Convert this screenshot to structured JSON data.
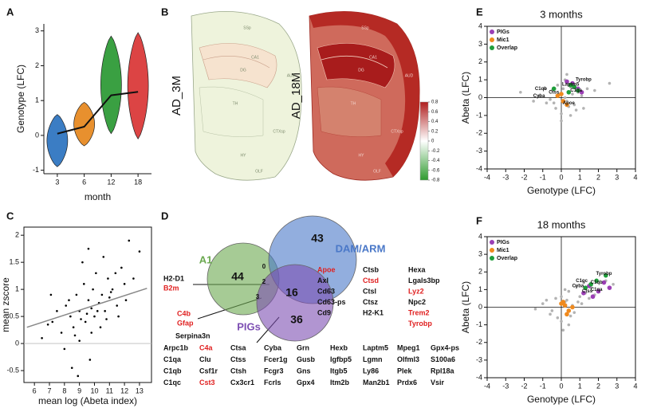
{
  "panels": [
    "A",
    "B",
    "C",
    "D",
    "E",
    "F"
  ],
  "chart_data": [
    {
      "type": "violin",
      "categories": [
        "3",
        "6",
        "12",
        "18"
      ],
      "x_label": "month",
      "y_label": "Genotype (LFC)",
      "values": [
        0.05,
        0.25,
        1.15,
        1.25
      ],
      "min": [
        -0.9,
        -0.3,
        0.05,
        -0.1
      ],
      "max": [
        0.6,
        0.95,
        2.85,
        2.95
      ],
      "colors": [
        "#3b7dc4",
        "#e8902e",
        "#3aa042",
        "#dc4444"
      ],
      "line_color": "#111111",
      "ylim": [
        -1.1,
        3.2
      ],
      "yticks": [
        -1,
        0,
        1,
        2,
        3
      ]
    },
    {
      "type": "scatter",
      "x_label": "mean log (Abeta index)",
      "y_label": "mean zscore",
      "color": "#000000",
      "x": [
        7.2,
        7.8,
        8.1,
        8.4,
        8.6,
        8.8,
        9.0,
        9.1,
        9.3,
        9.5,
        9.6,
        9.8,
        10.0,
        10.1,
        10.3,
        10.5,
        10.7,
        10.9,
        11.0,
        11.2,
        11.5,
        11.8,
        12.0,
        12.3,
        6.5,
        6.9,
        7.5,
        8.0,
        8.3,
        8.7,
        9.2,
        9.4,
        9.7,
        9.9,
        10.2,
        10.6,
        11.1,
        11.6,
        12.6,
        13.0,
        8.5,
        9.0,
        9.6,
        10.4,
        8.9,
        7.1,
        10.8,
        11.4,
        12.1,
        9.8
      ],
      "y": [
        0.4,
        0.2,
        0.7,
        0.5,
        0.3,
        0.9,
        0.6,
        0.45,
        1.1,
        0.55,
        0.8,
        0.65,
        0.5,
        1.3,
        0.75,
        0.9,
        0.6,
        1.2,
        0.85,
        1.0,
        0.7,
        1.4,
        1.1,
        1.9,
        0.1,
        0.35,
        0.6,
        -0.1,
        0.8,
        0.15,
        1.5,
        0.4,
        -0.3,
        1.0,
        0.6,
        1.6,
        0.95,
        0.5,
        1.2,
        1.7,
        -0.45,
        0.05,
        1.75,
        0.3,
        -0.6,
        0.9,
        0.45,
        1.3,
        0.8,
        0.2
      ],
      "trend_x": [
        5.5,
        13.5
      ],
      "trend_y": [
        0.3,
        1.02
      ],
      "trend_color": "#888888",
      "zero_y": true,
      "xlim": [
        5.3,
        13.8
      ],
      "xticks": [
        6,
        7,
        8,
        9,
        10,
        11,
        12,
        13
      ],
      "ylim": [
        -0.72,
        2.15
      ],
      "yticks": [
        -0.5,
        0,
        0.5,
        1,
        1.5,
        2
      ]
    },
    {
      "type": "scatter",
      "title": "3 months",
      "x_label": "Genotype (LFC)",
      "y_label": "Abeta (LFC)",
      "zero_x": true,
      "zero_y": true,
      "legend": "upper left",
      "background": {
        "color": "#b3b3b3",
        "x": [
          -1.2,
          -0.8,
          -0.5,
          -0.3,
          -0.1,
          0,
          0.1,
          0.2,
          0.3,
          0.5,
          0.7,
          0.9,
          1.1,
          1.4,
          -0.6,
          -0.2,
          0.4,
          0.6,
          0.8,
          -1.5,
          1.8,
          -0.9,
          0.2,
          0,
          0.5,
          -0.4,
          1.2,
          -2.2,
          2.6,
          0.3
        ],
        "y": [
          0.1,
          -0.3,
          0.4,
          -0.6,
          0.2,
          -0.9,
          0.5,
          0.0,
          -0.2,
          0.6,
          -0.4,
          0.3,
          0.1,
          0.5,
          -0.1,
          0.7,
          -0.5,
          0.2,
          -0.7,
          -0.2,
          0.4,
          0.5,
          1.0,
          -1.3,
          -1.0,
          -0.3,
          -0.6,
          0.3,
          0.8,
          1.3
        ]
      },
      "series": [
        {
          "name": "PIGs",
          "color": "#9b3fb5",
          "x": [
            0.6,
            0.9,
            0.3,
            1.1
          ],
          "y": [
            0.8,
            0.5,
            0.9,
            0.3
          ]
        },
        {
          "name": "Mic1",
          "color": "#f08a1e",
          "x": [
            0.1,
            -0.2,
            0.3,
            0.0
          ],
          "y": [
            -0.2,
            0.1,
            -0.4,
            0.2
          ]
        },
        {
          "name": "Overlap",
          "color": "#1e9e3a",
          "x": [
            0.5,
            0.7,
            0.9,
            -0.4,
            0.4
          ],
          "y": [
            0.7,
            0.6,
            0.4,
            0.5,
            0.3
          ]
        }
      ],
      "gene_labels": [
        {
          "text": "Tyrobp",
          "x": 1.2,
          "y": 1.0
        },
        {
          "text": "Laptm5",
          "x": 0.5,
          "y": 0.75
        },
        {
          "text": "C1qb",
          "x": -1.1,
          "y": 0.5
        },
        {
          "text": "C1qa",
          "x": 0.8,
          "y": 0.4
        },
        {
          "text": "Ctss",
          "x": -0.4,
          "y": 0.3
        },
        {
          "text": "Cyba",
          "x": -1.2,
          "y": 0.1
        },
        {
          "text": "Apoe",
          "x": 0.4,
          "y": -0.3
        }
      ],
      "xlim": [
        -4,
        4
      ],
      "xticks": [
        -4,
        -3,
        -2,
        -1,
        0,
        1,
        2,
        3,
        4
      ],
      "ylim": [
        -4,
        4
      ],
      "yticks": [
        -4,
        -3,
        -2,
        -1,
        0,
        1,
        2,
        3,
        4
      ]
    },
    {
      "type": "scatter",
      "title": "18 months",
      "x_label": "Genotype (LFC)",
      "y_label": "Abeta (LFC)",
      "zero_x": true,
      "zero_y": true,
      "legend": "upper left",
      "background": {
        "color": "#b3b3b3",
        "x": [
          -1.0,
          -0.6,
          -0.3,
          0,
          0.2,
          0.4,
          0.6,
          0.8,
          1.0,
          1.3,
          1.6,
          2.0,
          2.4,
          -0.5,
          0.1,
          0.3,
          0.5,
          0.9,
          1.2,
          1.5,
          1.8,
          -1.4,
          0.7,
          0.2,
          -0.2,
          1.1,
          2.8,
          0.0,
          0.4,
          -0.8
        ],
        "y": [
          0.2,
          -0.4,
          0.5,
          -0.8,
          0.3,
          0.9,
          0.1,
          1.2,
          0.6,
          0.8,
          1.1,
          0.9,
          1.5,
          -0.2,
          -1.3,
          0.4,
          -0.5,
          0.3,
          1.4,
          0.5,
          0.7,
          -0.1,
          -0.3,
          1.0,
          -0.6,
          0.2,
          1.3,
          0.6,
          -1.0,
          0.4
        ]
      },
      "series": [
        {
          "name": "PIGs",
          "color": "#9b3fb5",
          "x": [
            1.5,
            2.0,
            2.3,
            1.7,
            2.6,
            1.2
          ],
          "y": [
            1.2,
            0.9,
            1.4,
            0.6,
            1.1,
            0.8
          ]
        },
        {
          "name": "Mic1",
          "color": "#f08a1e",
          "x": [
            0.2,
            0.4,
            0.1,
            0.6,
            0.3,
            0.0
          ],
          "y": [
            0.1,
            -0.2,
            0.3,
            0.0,
            -0.4,
            0.2
          ]
        },
        {
          "name": "Overlap",
          "color": "#1e9e3a",
          "x": [
            1.6,
            1.9,
            1.3,
            2.4
          ],
          "y": [
            1.3,
            1.5,
            1.1,
            1.8
          ]
        }
      ],
      "gene_labels": [
        {
          "text": "Tyrobp",
          "x": 2.3,
          "y": 1.9
        },
        {
          "text": "C1qb",
          "x": 1.9,
          "y": 1.4
        },
        {
          "text": "C1qc",
          "x": 1.1,
          "y": 1.5
        },
        {
          "text": "Cyba",
          "x": 0.9,
          "y": 1.2
        },
        {
          "text": "C1qa",
          "x": 1.9,
          "y": 1.0
        },
        {
          "text": "Ctss",
          "x": 1.4,
          "y": 0.9
        }
      ],
      "xlim": [
        -4,
        4
      ],
      "xticks": [
        -4,
        -3,
        -2,
        -1,
        0,
        1,
        2,
        3,
        4
      ],
      "ylim": [
        -4,
        4
      ],
      "yticks": [
        -4,
        -3,
        -2,
        -1,
        0,
        1,
        2,
        3,
        4
      ]
    }
  ],
  "brain": {
    "labels": [
      "AD_3M",
      "AD_18M"
    ],
    "regions": [
      "SSp",
      "TH",
      "HY",
      "CTXsp",
      "OLF",
      "AUD",
      "CA1",
      "DG"
    ],
    "clim": [
      -0.8,
      0.8
    ],
    "colorbar_ticks": [
      0.8,
      0.6,
      0.4,
      0.2,
      0,
      -0.2,
      -0.4,
      -0.6,
      -0.8
    ]
  },
  "venn": {
    "sets": [
      {
        "name": "A1",
        "color": "#6aa84f"
      },
      {
        "name": "DAM/ARM",
        "color": "#4a78c8"
      },
      {
        "name": "PIGs",
        "color": "#7d4fb3"
      }
    ],
    "counts": [
      44,
      43,
      36,
      16,
      0,
      2,
      3
    ],
    "highlight_color": "#e02020",
    "red": [
      "B2m",
      "C4b",
      "Gfap",
      "Apoe",
      "Ctsd",
      "Lyz2",
      "Trem2",
      "Tyrobp",
      "C4a",
      "Cst3"
    ],
    "a1_genes": [
      "H2-D1",
      "B2m",
      "C4b",
      "Gfap",
      "Serpina3n"
    ],
    "dam_genes": [
      [
        "Apoe",
        "Axl",
        "Cd63",
        "Cd63-ps",
        "Cd9"
      ],
      [
        "Ctsb",
        "Ctsd",
        "Ctsl",
        "Ctsz",
        "H2-K1"
      ],
      [
        "Hexa",
        "Lgals3bp",
        "Lyz2",
        "Npc2",
        "Trem2",
        "Tyrobp"
      ]
    ],
    "pig_genes": [
      [
        "Arpc1b",
        "C4a",
        "Ctsa",
        "Cyba",
        "Grn",
        "Hexb",
        "Laptm5",
        "Mpeg1",
        "Gpx4-ps"
      ],
      [
        "C1qa",
        "Clu",
        "Ctss",
        "Fcer1g",
        "Gusb",
        "Igfbp5",
        "Lgmn",
        "Olfml3",
        "S100a6"
      ],
      [
        "C1qb",
        "Csf1r",
        "Ctsh",
        "Fcgr3",
        "Gns",
        "Itgb5",
        "Ly86",
        "Plek",
        "Rpl18a"
      ],
      [
        "C1qc",
        "Cst3",
        "Cx3cr1",
        "Fcrls",
        "Gpx4",
        "Itm2b",
        "Man2b1",
        "Prdx6",
        "Vsir"
      ]
    ]
  }
}
